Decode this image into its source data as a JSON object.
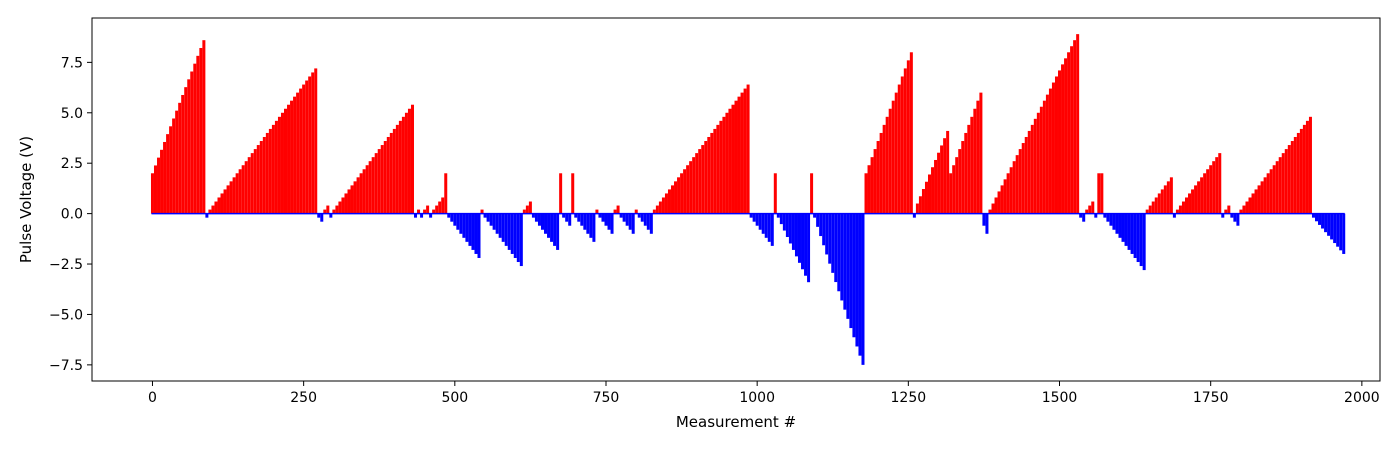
{
  "chart_data": {
    "type": "bar",
    "title": "",
    "xlabel": "Measurement #",
    "ylabel": "Pulse Voltage (V)",
    "xlim": [
      -100,
      2030
    ],
    "ylim": [
      -8.3,
      9.7
    ],
    "xticks": [
      0,
      250,
      500,
      750,
      1000,
      1250,
      1500,
      1750,
      2000
    ],
    "yticks": [
      -7.5,
      -5.0,
      -2.5,
      0.0,
      2.5,
      5.0,
      7.5
    ],
    "xtick_labels": [
      "0",
      "250",
      "500",
      "750",
      "1000",
      "1250",
      "1500",
      "1750",
      "2000"
    ],
    "ytick_labels": [
      "−7.5",
      "−5.0",
      "−2.5",
      "0.0",
      "2.5",
      "5.0",
      "7.5"
    ],
    "bar_spacing": 5,
    "grid": false,
    "colors": {
      "positive": "#ff0000",
      "negative": "#0000ff"
    },
    "segments": [
      {
        "x_start": 0,
        "x_end": 85,
        "y_start": 2.0,
        "y_end": 8.6
      },
      {
        "x_start": 90,
        "x_end": 90,
        "y_start": -0.2,
        "y_end": -0.2
      },
      {
        "x_start": 95,
        "x_end": 270,
        "y_start": 0.2,
        "y_end": 7.2
      },
      {
        "x_start": 275,
        "x_end": 275,
        "y_start": -0.2,
        "y_end": -0.2
      },
      {
        "x_start": 280,
        "x_end": 280,
        "y_start": -0.4,
        "y_end": -0.4
      },
      {
        "x_start": 285,
        "x_end": 290,
        "y_start": 0.2,
        "y_end": 0.4
      },
      {
        "x_start": 295,
        "x_end": 295,
        "y_start": -0.2,
        "y_end": -0.2
      },
      {
        "x_start": 300,
        "x_end": 430,
        "y_start": 0.2,
        "y_end": 5.4
      },
      {
        "x_start": 435,
        "x_end": 435,
        "y_start": -0.2,
        "y_end": -0.2
      },
      {
        "x_start": 440,
        "x_end": 440,
        "y_start": 0.2,
        "y_end": 0.2
      },
      {
        "x_start": 445,
        "x_end": 445,
        "y_start": -0.2,
        "y_end": -0.2
      },
      {
        "x_start": 450,
        "x_end": 455,
        "y_start": 0.2,
        "y_end": 0.4
      },
      {
        "x_start": 460,
        "x_end": 460,
        "y_start": -0.2,
        "y_end": -0.2
      },
      {
        "x_start": 465,
        "x_end": 480,
        "y_start": 0.2,
        "y_end": 0.8
      },
      {
        "x_start": 485,
        "x_end": 485,
        "y_start": 2.0,
        "y_end": 2.0
      },
      {
        "x_start": 490,
        "x_end": 540,
        "y_start": -0.2,
        "y_end": -2.2
      },
      {
        "x_start": 545,
        "x_end": 545,
        "y_start": 0.2,
        "y_end": 0.2
      },
      {
        "x_start": 550,
        "x_end": 610,
        "y_start": -0.2,
        "y_end": -2.6
      },
      {
        "x_start": 615,
        "x_end": 625,
        "y_start": 0.2,
        "y_end": 0.6
      },
      {
        "x_start": 630,
        "x_end": 670,
        "y_start": -0.2,
        "y_end": -1.8
      },
      {
        "x_start": 675,
        "x_end": 675,
        "y_start": 2.0,
        "y_end": 2.0
      },
      {
        "x_start": 680,
        "x_end": 690,
        "y_start": -0.2,
        "y_end": -0.6
      },
      {
        "x_start": 695,
        "x_end": 695,
        "y_start": 2.0,
        "y_end": 2.0
      },
      {
        "x_start": 700,
        "x_end": 730,
        "y_start": -0.2,
        "y_end": -1.4
      },
      {
        "x_start": 735,
        "x_end": 735,
        "y_start": 0.2,
        "y_end": 0.2
      },
      {
        "x_start": 740,
        "x_end": 760,
        "y_start": -0.2,
        "y_end": -1.0
      },
      {
        "x_start": 765,
        "x_end": 770,
        "y_start": 0.2,
        "y_end": 0.4
      },
      {
        "x_start": 775,
        "x_end": 795,
        "y_start": -0.2,
        "y_end": -1.0
      },
      {
        "x_start": 800,
        "x_end": 800,
        "y_start": 0.2,
        "y_end": 0.2
      },
      {
        "x_start": 805,
        "x_end": 825,
        "y_start": -0.2,
        "y_end": -1.0
      },
      {
        "x_start": 830,
        "x_end": 985,
        "y_start": 0.2,
        "y_end": 6.4
      },
      {
        "x_start": 990,
        "x_end": 1025,
        "y_start": -0.2,
        "y_end": -1.6
      },
      {
        "x_start": 1030,
        "x_end": 1030,
        "y_start": 2.0,
        "y_end": 2.0
      },
      {
        "x_start": 1035,
        "x_end": 1085,
        "y_start": -0.2,
        "y_end": -3.4
      },
      {
        "x_start": 1090,
        "x_end": 1090,
        "y_start": 2.0,
        "y_end": 2.0
      },
      {
        "x_start": 1095,
        "x_end": 1175,
        "y_start": -0.2,
        "y_end": -7.5
      },
      {
        "x_start": 1180,
        "x_end": 1255,
        "y_start": 2.0,
        "y_end": 8.0
      },
      {
        "x_start": 1260,
        "x_end": 1260,
        "y_start": -0.2,
        "y_end": -0.2
      },
      {
        "x_start": 1265,
        "x_end": 1315,
        "y_start": 0.5,
        "y_end": 4.1
      },
      {
        "x_start": 1320,
        "x_end": 1370,
        "y_start": 2.0,
        "y_end": 6.0
      },
      {
        "x_start": 1375,
        "x_end": 1375,
        "y_start": -0.6,
        "y_end": -0.6
      },
      {
        "x_start": 1380,
        "x_end": 1380,
        "y_start": -1.0,
        "y_end": -1.0
      },
      {
        "x_start": 1385,
        "x_end": 1530,
        "y_start": 0.2,
        "y_end": 8.9
      },
      {
        "x_start": 1535,
        "x_end": 1540,
        "y_start": -0.2,
        "y_end": -0.4
      },
      {
        "x_start": 1545,
        "x_end": 1555,
        "y_start": 0.2,
        "y_end": 0.6
      },
      {
        "x_start": 1560,
        "x_end": 1560,
        "y_start": -0.2,
        "y_end": -0.2
      },
      {
        "x_start": 1565,
        "x_end": 1570,
        "y_start": 2.0,
        "y_end": 2.0
      },
      {
        "x_start": 1575,
        "x_end": 1640,
        "y_start": -0.2,
        "y_end": -2.8
      },
      {
        "x_start": 1645,
        "x_end": 1685,
        "y_start": 0.2,
        "y_end": 1.8
      },
      {
        "x_start": 1690,
        "x_end": 1690,
        "y_start": -0.2,
        "y_end": -0.2
      },
      {
        "x_start": 1695,
        "x_end": 1765,
        "y_start": 0.2,
        "y_end": 3.0
      },
      {
        "x_start": 1770,
        "x_end": 1770,
        "y_start": -0.2,
        "y_end": -0.2
      },
      {
        "x_start": 1775,
        "x_end": 1780,
        "y_start": 0.2,
        "y_end": 0.4
      },
      {
        "x_start": 1785,
        "x_end": 1795,
        "y_start": -0.2,
        "y_end": -0.6
      },
      {
        "x_start": 1800,
        "x_end": 1915,
        "y_start": 0.2,
        "y_end": 4.8
      },
      {
        "x_start": 1920,
        "x_end": 1970,
        "y_start": -0.2,
        "y_end": -2.0
      }
    ]
  }
}
